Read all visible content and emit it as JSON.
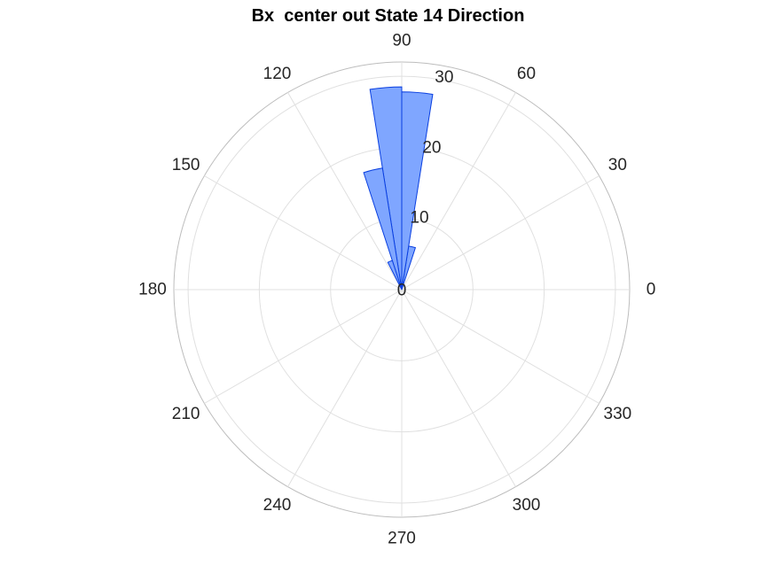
{
  "chart_data": {
    "type": "polar-histogram",
    "title": "Bx  center out State 14 Direction",
    "theta_ticks": [
      "0",
      "30",
      "60",
      "90",
      "120",
      "150",
      "180",
      "210",
      "240",
      "270",
      "300",
      "330"
    ],
    "theta_tick_values": [
      0,
      30,
      60,
      90,
      120,
      150,
      180,
      210,
      240,
      270,
      300,
      330
    ],
    "r_ticks": [
      "0",
      "10",
      "20",
      "30"
    ],
    "r_tick_values": [
      0,
      10,
      20,
      30
    ],
    "rlim": [
      0,
      32
    ],
    "theta_zero": "right",
    "theta_direction": "counterclockwise",
    "grid": true,
    "bins": [
      {
        "theta_start": 72,
        "theta_end": 81,
        "value": 6.2
      },
      {
        "theta_start": 81,
        "theta_end": 90,
        "value": 27.8
      },
      {
        "theta_start": 90,
        "theta_end": 99,
        "value": 28.5
      },
      {
        "theta_start": 99,
        "theta_end": 108,
        "value": 17.3
      },
      {
        "theta_start": 108,
        "theta_end": 117,
        "value": 4.3
      }
    ],
    "colors": {
      "fill": "#7fa6ff",
      "edge": "#0a3fe0",
      "grid": "#e0e0e0",
      "outer_ring": "#bdbdbd",
      "tick_text": "#262626"
    }
  }
}
